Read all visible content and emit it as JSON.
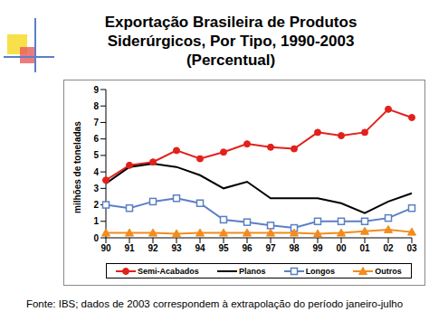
{
  "chart_data": {
    "type": "line",
    "title": "Exportação Brasileira de Produtos Siderúrgicos, Por Tipo, 1990-2003 (Percentual)",
    "y_label": "milhões de toneladas",
    "source": "Fonte: IBS; dados de 2003 correspondem à extrapolação do período janeiro-julho",
    "categories": [
      "90",
      "91",
      "92",
      "93",
      "94",
      "95",
      "96",
      "97",
      "98",
      "99",
      "00",
      "01",
      "02",
      "03"
    ],
    "series": [
      {
        "name": "Semi-Acabados",
        "color": "#e3201b",
        "marker": "circle",
        "values": [
          3.5,
          4.4,
          4.6,
          5.3,
          4.8,
          5.2,
          5.7,
          5.5,
          5.4,
          6.4,
          6.2,
          6.4,
          7.8,
          7.3
        ]
      },
      {
        "name": "Planos",
        "color": "#000000",
        "marker": "none",
        "values": [
          3.3,
          4.3,
          4.5,
          4.3,
          3.8,
          3.0,
          3.4,
          2.4,
          2.4,
          2.4,
          2.1,
          1.5,
          2.2,
          2.7
        ]
      },
      {
        "name": "Longos",
        "color": "#5b7fc7",
        "marker": "square",
        "values": [
          2.0,
          1.8,
          2.2,
          2.4,
          2.1,
          1.1,
          0.95,
          0.75,
          0.6,
          1.0,
          1.0,
          1.0,
          1.2,
          1.8
        ]
      },
      {
        "name": "Outros",
        "color": "#f28c1c",
        "marker": "triangle",
        "values": [
          0.3,
          0.3,
          0.3,
          0.25,
          0.3,
          0.3,
          0.3,
          0.3,
          0.3,
          0.25,
          0.3,
          0.4,
          0.5,
          0.35
        ]
      }
    ],
    "ylim": [
      0,
      9
    ],
    "yticks": [
      0,
      1,
      2,
      3,
      4,
      5,
      6,
      7,
      8,
      9
    ],
    "grid": false,
    "legend": "bottom"
  }
}
